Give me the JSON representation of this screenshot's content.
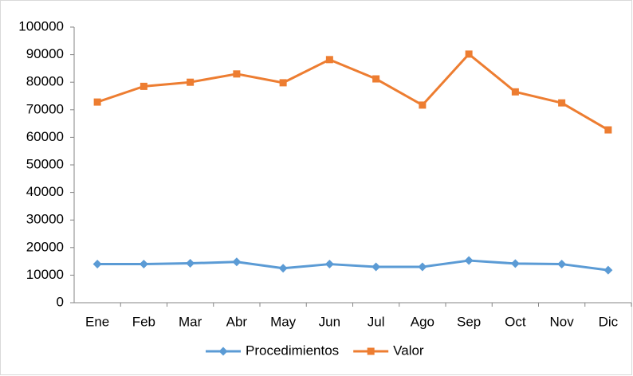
{
  "chart_data": {
    "type": "line",
    "categories": [
      "Ene",
      "Feb",
      "Mar",
      "Abr",
      "May",
      "Jun",
      "Jul",
      "Ago",
      "Sep",
      "Oct",
      "Nov",
      "Dic"
    ],
    "series": [
      {
        "name": "Procedimientos",
        "color": "#5b9bd5",
        "marker": "diamond",
        "values": [
          14000,
          14000,
          14300,
          14800,
          12500,
          14000,
          13000,
          13000,
          15300,
          14200,
          14000,
          11800
        ]
      },
      {
        "name": "Valor",
        "color": "#ed7d31",
        "marker": "square",
        "values": [
          72800,
          78500,
          80000,
          83000,
          79800,
          88200,
          81200,
          71700,
          90200,
          76500,
          72500,
          62700
        ]
      }
    ],
    "ylim": [
      0,
      100000
    ],
    "yticks": [
      0,
      10000,
      20000,
      30000,
      40000,
      50000,
      60000,
      70000,
      80000,
      90000,
      100000
    ],
    "grid": false,
    "legend": "bottom"
  }
}
